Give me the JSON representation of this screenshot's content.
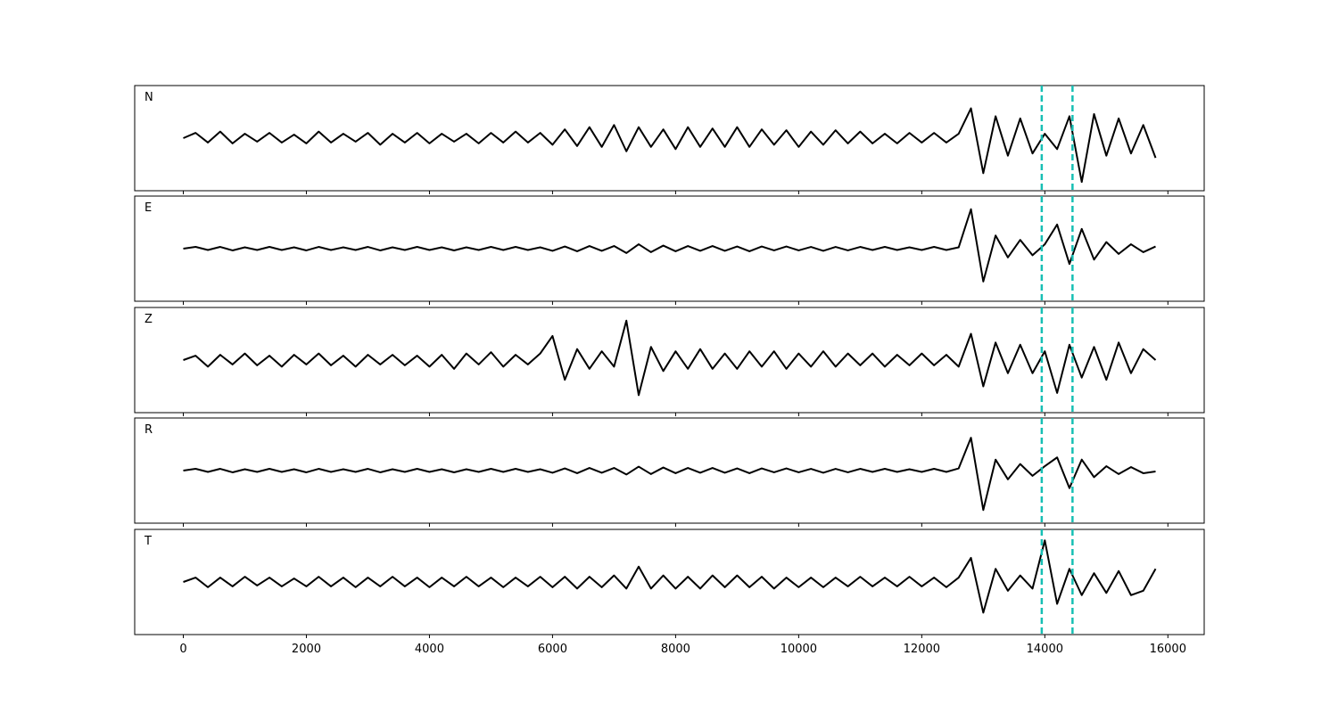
{
  "chart_data": {
    "type": "line",
    "x": [
      0,
      200,
      400,
      600,
      800,
      1000,
      1200,
      1400,
      1600,
      1800,
      2000,
      2200,
      2400,
      2600,
      2800,
      3000,
      3200,
      3400,
      3600,
      3800,
      4000,
      4200,
      4400,
      4600,
      4800,
      5000,
      5200,
      5400,
      5600,
      5800,
      6000,
      6200,
      6400,
      6600,
      6800,
      7000,
      7200,
      7400,
      7600,
      7800,
      8000,
      8200,
      8400,
      8600,
      8800,
      9000,
      9200,
      9400,
      9600,
      9800,
      10000,
      10200,
      10400,
      10600,
      10800,
      11000,
      11200,
      11400,
      11600,
      11800,
      12000,
      12200,
      12400,
      12600,
      12800,
      13000,
      13200,
      13400,
      13600,
      13800,
      14000,
      14200,
      14400,
      14600,
      14800,
      15000,
      15200,
      15400,
      15600,
      15800
    ],
    "xlim": [
      -790,
      16590
    ],
    "xticks": [
      0,
      2000,
      4000,
      6000,
      8000,
      10000,
      12000,
      14000,
      16000
    ],
    "ylim": [
      -1.2,
      1.2
    ],
    "series": [
      {
        "name": "N",
        "color": "#000000",
        "values": [
          0,
          0.12,
          -0.1,
          0.15,
          -0.12,
          0.1,
          -0.08,
          0.12,
          -0.1,
          0.08,
          -0.12,
          0.15,
          -0.1,
          0.1,
          -0.08,
          0.12,
          -0.15,
          0.1,
          -0.1,
          0.12,
          -0.12,
          0.1,
          -0.08,
          0.1,
          -0.12,
          0.12,
          -0.1,
          0.15,
          -0.1,
          0.12,
          -0.15,
          0.2,
          -0.18,
          0.25,
          -0.2,
          0.3,
          -0.3,
          0.25,
          -0.2,
          0.2,
          -0.25,
          0.25,
          -0.2,
          0.22,
          -0.2,
          0.25,
          -0.2,
          0.2,
          -0.15,
          0.18,
          -0.2,
          0.15,
          -0.15,
          0.18,
          -0.12,
          0.15,
          -0.12,
          0.1,
          -0.12,
          0.12,
          -0.1,
          0.12,
          -0.1,
          0.1,
          0.68,
          -0.8,
          0.5,
          -0.4,
          0.45,
          -0.35,
          0.1,
          -0.25,
          0.5,
          -1.0,
          0.55,
          -0.4,
          0.45,
          -0.35,
          0.3,
          -0.45
        ]
      },
      {
        "name": "E",
        "color": "#000000",
        "values": [
          0,
          0.04,
          -0.03,
          0.04,
          -0.04,
          0.03,
          -0.03,
          0.04,
          -0.03,
          0.03,
          -0.04,
          0.04,
          -0.03,
          0.03,
          -0.03,
          0.04,
          -0.04,
          0.03,
          -0.03,
          0.04,
          -0.03,
          0.03,
          -0.04,
          0.03,
          -0.03,
          0.04,
          -0.03,
          0.04,
          -0.03,
          0.03,
          -0.05,
          0.05,
          -0.06,
          0.06,
          -0.05,
          0.06,
          -0.1,
          0.1,
          -0.08,
          0.07,
          -0.06,
          0.06,
          -0.05,
          0.06,
          -0.05,
          0.05,
          -0.06,
          0.05,
          -0.04,
          0.05,
          -0.04,
          0.04,
          -0.05,
          0.04,
          -0.04,
          0.04,
          -0.03,
          0.04,
          -0.03,
          0.03,
          -0.03,
          0.04,
          -0.03,
          0.03,
          0.9,
          -0.75,
          0.3,
          -0.2,
          0.2,
          -0.15,
          0.1,
          0.55,
          -0.35,
          0.45,
          -0.25,
          0.15,
          -0.12,
          0.1,
          -0.08,
          0.05
        ]
      },
      {
        "name": "Z",
        "color": "#000000",
        "values": [
          0,
          0.1,
          -0.15,
          0.12,
          -0.1,
          0.15,
          -0.12,
          0.1,
          -0.15,
          0.12,
          -0.1,
          0.15,
          -0.12,
          0.1,
          -0.15,
          0.12,
          -0.1,
          0.12,
          -0.12,
          0.1,
          -0.15,
          0.12,
          -0.2,
          0.15,
          -0.1,
          0.18,
          -0.15,
          0.12,
          -0.1,
          0.15,
          0.55,
          -0.45,
          0.25,
          -0.2,
          0.2,
          -0.15,
          0.9,
          -0.8,
          0.3,
          -0.25,
          0.2,
          -0.2,
          0.25,
          -0.2,
          0.15,
          -0.2,
          0.2,
          -0.15,
          0.2,
          -0.2,
          0.15,
          -0.15,
          0.2,
          -0.15,
          0.15,
          -0.12,
          0.15,
          -0.15,
          0.12,
          -0.12,
          0.15,
          -0.12,
          0.12,
          -0.15,
          0.6,
          -0.6,
          0.4,
          -0.3,
          0.35,
          -0.3,
          0.2,
          -0.75,
          0.35,
          -0.4,
          0.3,
          -0.45,
          0.4,
          -0.3,
          0.25,
          0
        ]
      },
      {
        "name": "R",
        "color": "#000000",
        "values": [
          0,
          0.04,
          -0.03,
          0.04,
          -0.04,
          0.03,
          -0.03,
          0.04,
          -0.03,
          0.03,
          -0.04,
          0.04,
          -0.03,
          0.03,
          -0.03,
          0.04,
          -0.04,
          0.03,
          -0.03,
          0.04,
          -0.03,
          0.03,
          -0.04,
          0.03,
          -0.03,
          0.04,
          -0.03,
          0.04,
          -0.03,
          0.03,
          -0.05,
          0.05,
          -0.06,
          0.06,
          -0.05,
          0.06,
          -0.09,
          0.09,
          -0.08,
          0.07,
          -0.06,
          0.06,
          -0.05,
          0.06,
          -0.05,
          0.05,
          -0.06,
          0.05,
          -0.04,
          0.05,
          -0.04,
          0.04,
          -0.05,
          0.04,
          -0.04,
          0.04,
          -0.03,
          0.04,
          -0.03,
          0.03,
          -0.03,
          0.04,
          -0.03,
          0.05,
          0.75,
          -0.9,
          0.25,
          -0.2,
          0.15,
          -0.12,
          0.1,
          0.3,
          -0.4,
          0.25,
          -0.15,
          0.1,
          -0.08,
          0.08,
          -0.06,
          -0.02
        ]
      },
      {
        "name": "T",
        "color": "#000000",
        "values": [
          0,
          0.1,
          -0.12,
          0.1,
          -0.1,
          0.12,
          -0.08,
          0.1,
          -0.1,
          0.08,
          -0.1,
          0.12,
          -0.1,
          0.1,
          -0.12,
          0.1,
          -0.1,
          0.12,
          -0.1,
          0.1,
          -0.12,
          0.1,
          -0.1,
          0.12,
          -0.1,
          0.1,
          -0.12,
          0.1,
          -0.1,
          0.12,
          -0.12,
          0.12,
          -0.15,
          0.12,
          -0.12,
          0.15,
          -0.15,
          0.35,
          -0.15,
          0.15,
          -0.15,
          0.12,
          -0.15,
          0.15,
          -0.12,
          0.15,
          -0.12,
          0.12,
          -0.15,
          0.1,
          -0.12,
          0.1,
          -0.12,
          0.1,
          -0.1,
          0.12,
          -0.1,
          0.1,
          -0.1,
          0.12,
          -0.1,
          0.1,
          -0.12,
          0.1,
          0.55,
          -0.7,
          0.3,
          -0.2,
          0.15,
          -0.15,
          0.95,
          -0.5,
          0.3,
          -0.3,
          0.2,
          -0.25,
          0.25,
          -0.3,
          -0.2,
          0.3
        ]
      }
    ],
    "vlines": {
      "values": [
        13950,
        14450
      ],
      "color": "#17bfb4",
      "style": "dashed"
    }
  }
}
